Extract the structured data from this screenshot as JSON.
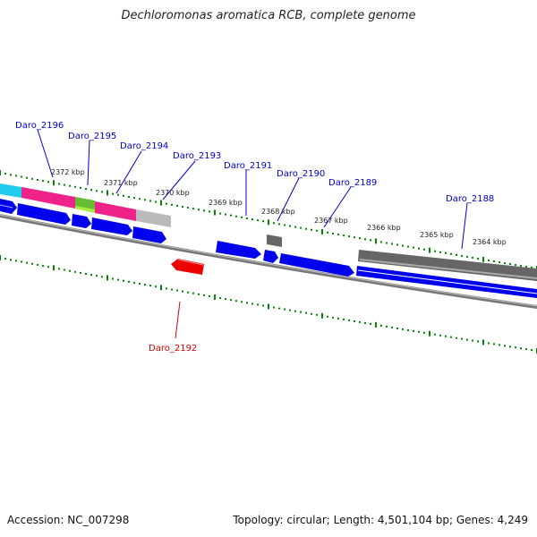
{
  "title": "Dechloromonas aromatica RCB, complete genome",
  "accession": "Accession: NC_007298",
  "topology": "Topology: circular; Length: 4,501,104 bp; Genes: 4,249",
  "colors": {
    "gene_forward": "#0000ee",
    "gene_reverse": "#ee0000",
    "label_forward": "#0000cc",
    "label_reverse": "#cc0000",
    "tick": "#008800",
    "backbone": "#777777"
  },
  "gene_labels": [
    {
      "id": "Daro_2196",
      "strand": "forward"
    },
    {
      "id": "Daro_2195",
      "strand": "forward"
    },
    {
      "id": "Daro_2194",
      "strand": "forward"
    },
    {
      "id": "Daro_2193",
      "strand": "forward"
    },
    {
      "id": "Daro_2191",
      "strand": "forward"
    },
    {
      "id": "Daro_2190",
      "strand": "forward"
    },
    {
      "id": "Daro_2189",
      "strand": "forward"
    },
    {
      "id": "Daro_2188",
      "strand": "forward"
    },
    {
      "id": "Daro_2192",
      "strand": "reverse"
    }
  ],
  "kbp_labels": [
    "2372 kbp",
    "2371 kbp",
    "2370 kbp",
    "2369 kbp",
    "2368 kbp",
    "2367 kbp",
    "2366 kbp",
    "2365 kbp",
    "2364 kbp"
  ]
}
